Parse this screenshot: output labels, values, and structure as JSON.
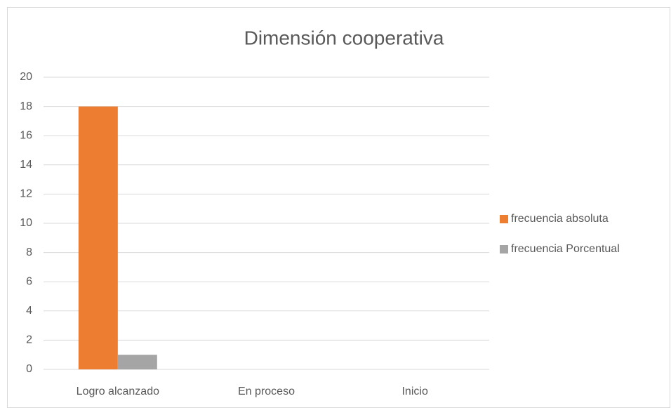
{
  "chart_data": {
    "type": "bar",
    "title": "Dimensión cooperativa",
    "categories": [
      "Logro alcanzado",
      "En proceso",
      "Inicio"
    ],
    "series": [
      {
        "name": "frecuencia absoluta",
        "color": "#ed7d31",
        "values": [
          18,
          0,
          0
        ]
      },
      {
        "name": "frecuencia Porcentual",
        "color": "#a5a5a5",
        "values": [
          1,
          0,
          0
        ]
      }
    ],
    "ylim": [
      0,
      20
    ],
    "yticks": [
      0,
      2,
      4,
      6,
      8,
      10,
      12,
      14,
      16,
      18,
      20
    ],
    "grid": true,
    "legend": "right"
  }
}
